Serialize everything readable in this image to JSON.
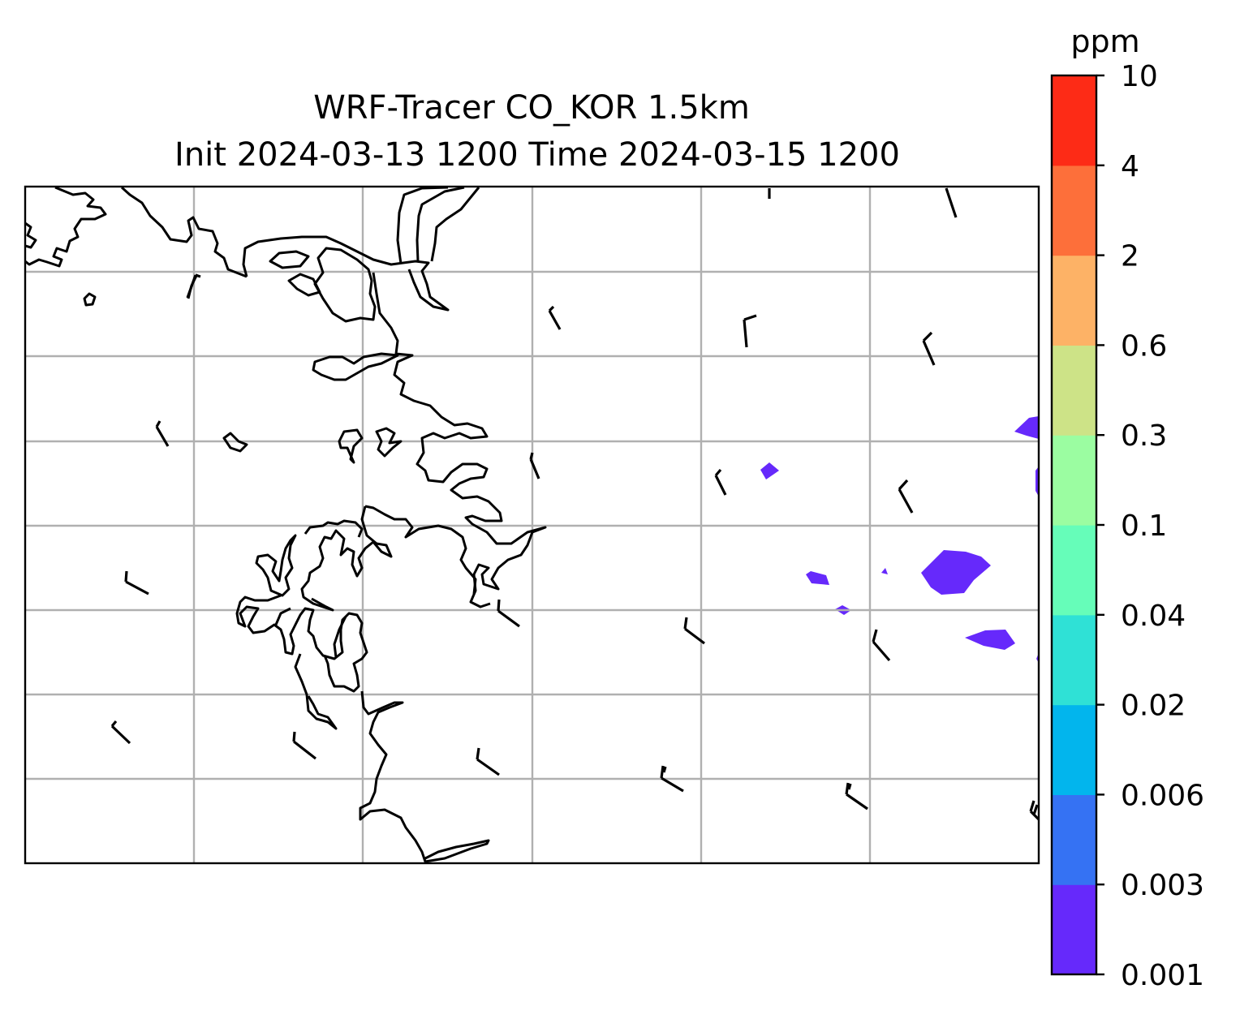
{
  "title_line1": "WRF-Tracer CO_KOR 1.5km",
  "title_line2": "Init 2024-03-13 1200 Time 2024-03-15 1200",
  "colorbar": {
    "unit": "ppm",
    "levels": [
      "0.001",
      "0.003",
      "0.006",
      "0.02",
      "0.04",
      "0.1",
      "0.3",
      "0.6",
      "2",
      "4",
      "10"
    ],
    "colors": [
      "#6629fb",
      "#3572f3",
      "#02b5ed",
      "#2fe1d6",
      "#66fdb9",
      "#9bfda1",
      "#cde387",
      "#fdb266",
      "#fd6f3a",
      "#fd2b16"
    ]
  },
  "map": {
    "gridlines": true,
    "coastline_color": "#000000",
    "contour_fill_level": "0.001–0.003 ppm",
    "contour_fill_color": "#6629fb",
    "wind_barbs": "present"
  }
}
